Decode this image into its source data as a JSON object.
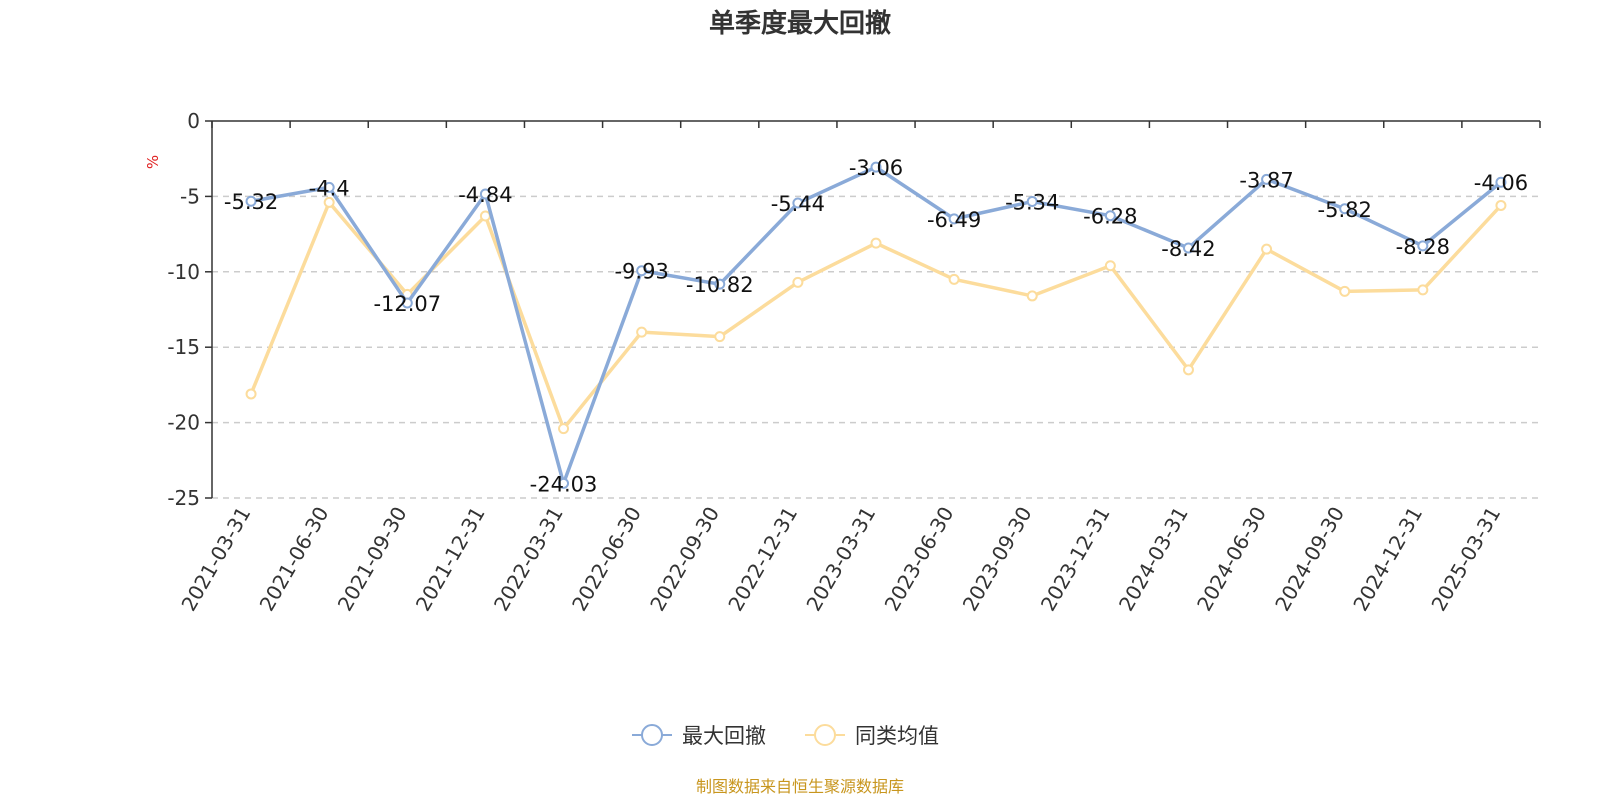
{
  "chart_data": {
    "type": "line",
    "title": "单季度最大回撤",
    "ylabel": "%",
    "ylim": [
      -25,
      0
    ],
    "yticks": [
      0,
      -5,
      -10,
      -15,
      -20,
      -25
    ],
    "grid": "horizontal-dashed",
    "legend_position": "bottom-center",
    "categories": [
      "2021-03-31",
      "2021-06-30",
      "2021-09-30",
      "2021-12-31",
      "2022-03-31",
      "2022-06-30",
      "2022-09-30",
      "2022-12-31",
      "2023-03-31",
      "2023-06-30",
      "2023-09-30",
      "2023-12-31",
      "2024-03-31",
      "2024-06-30",
      "2024-09-30",
      "2024-12-31",
      "2025-03-31"
    ],
    "series": [
      {
        "name": "最大回撤",
        "color": "#8aaad8",
        "labeled": true,
        "values": [
          -5.32,
          -4.4,
          -12.07,
          -4.84,
          -24.03,
          -9.93,
          -10.82,
          -5.44,
          -3.06,
          -6.49,
          -5.34,
          -6.28,
          -8.42,
          -3.87,
          -5.82,
          -8.28,
          -4.06
        ]
      },
      {
        "name": "同类均值",
        "color": "#fcdc9c",
        "labeled": false,
        "values": [
          -18.1,
          -5.4,
          -11.5,
          -6.3,
          -20.4,
          -14.0,
          -14.3,
          -10.7,
          -8.1,
          -10.5,
          -11.6,
          -9.6,
          -16.5,
          -8.5,
          -11.3,
          -11.2,
          -5.6
        ]
      }
    ],
    "source": "制图数据来自恒生聚源数据库"
  }
}
